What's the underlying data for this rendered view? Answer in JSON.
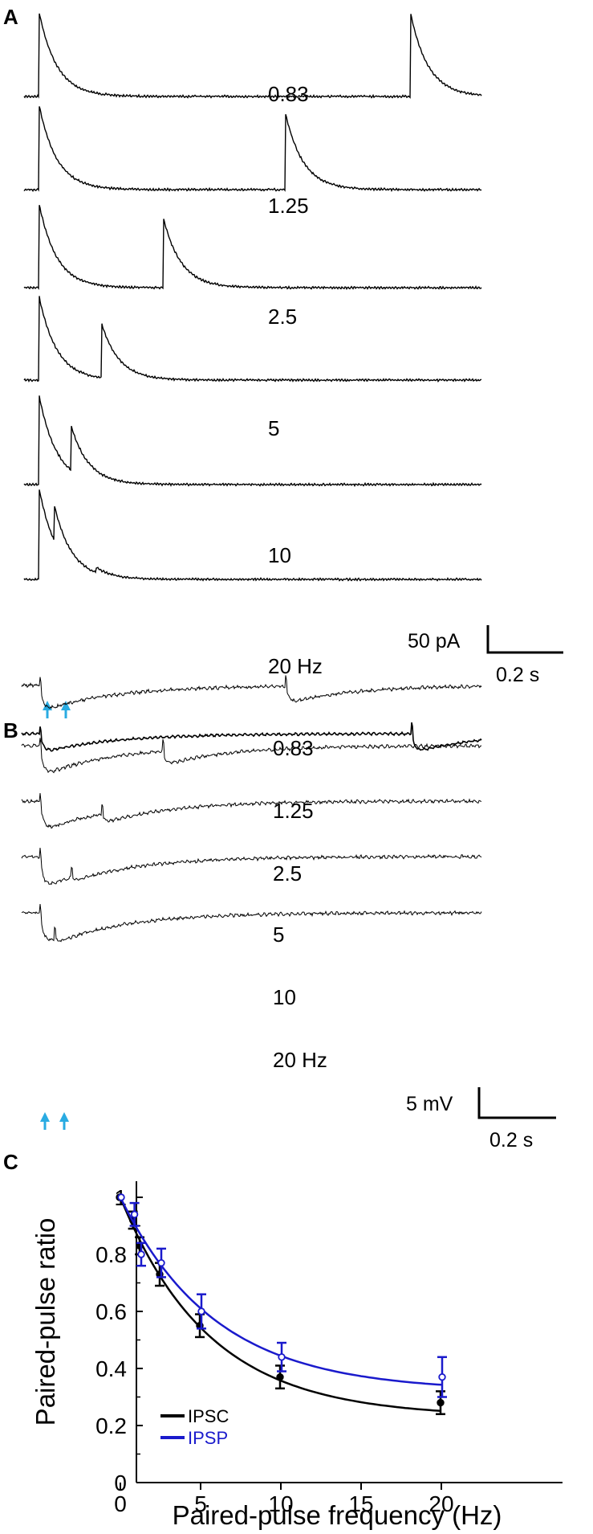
{
  "panels": {
    "a": "A",
    "b": "B",
    "c": "C"
  },
  "panel_a": {
    "trace_labels": [
      "0.83",
      "1.25",
      "2.5",
      "5",
      "10",
      "20 Hz"
    ],
    "scale_y": "50 pA",
    "scale_x": "0.2 s"
  },
  "panel_b": {
    "trace_labels": [
      "0.83",
      "1.25",
      "2.5",
      "5",
      "10",
      "20 Hz"
    ],
    "scale_y": "5 mV",
    "scale_x": "0.2 s"
  },
  "colors": {
    "ipsc": "#000000",
    "ipsp": "#1a1acc",
    "arrow": "#29abe2"
  },
  "chart_data": {
    "type": "line",
    "title": "",
    "xlabel": "Paired-pulse frequency (Hz)",
    "ylabel": "Paired-pulse ratio",
    "xlim": [
      0,
      21
    ],
    "ylim": [
      0,
      1.1
    ],
    "xticks": [
      0,
      5,
      10,
      15,
      20
    ],
    "yticks": [
      0,
      0.2,
      0.4,
      0.6,
      0.8,
      1
    ],
    "grid": false,
    "legend": "bottom-left",
    "series": [
      {
        "name": "IPSC",
        "color": "#000000",
        "x": [
          0,
          0.83,
          1.25,
          2.5,
          5,
          10,
          20
        ],
        "y": [
          1.0,
          0.92,
          0.83,
          0.73,
          0.55,
          0.37,
          0.28
        ],
        "err": [
          0,
          0.03,
          0.03,
          0.04,
          0.04,
          0.04,
          0.04
        ]
      },
      {
        "name": "IPSP",
        "color": "#1a1acc",
        "x": [
          0,
          0.83,
          1.25,
          2.5,
          5,
          10,
          20
        ],
        "y": [
          1.0,
          0.94,
          0.8,
          0.77,
          0.6,
          0.44,
          0.37
        ],
        "err": [
          0,
          0.04,
          0.04,
          0.05,
          0.06,
          0.05,
          0.07
        ]
      }
    ]
  }
}
